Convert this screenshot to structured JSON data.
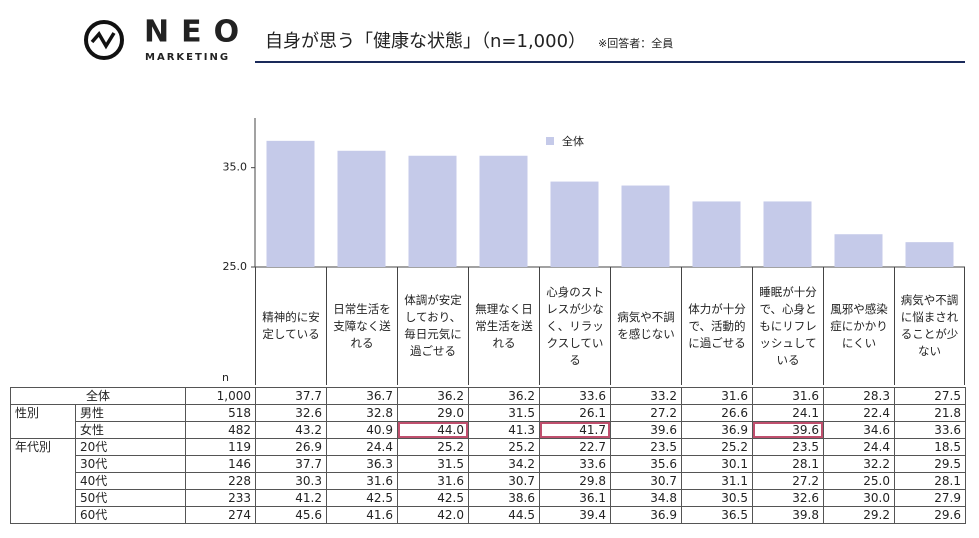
{
  "header": {
    "logo_main": "NEO",
    "logo_sub": "MARKETING",
    "title": "自身が思う「健康な状態」（n=1,000）",
    "note": "※回答者：全員"
  },
  "chart_data": {
    "type": "bar",
    "categories": [
      "精神的に安定している",
      "日常生活を支障なく送れる",
      "体調が安定しており、毎日元気に過ごせる",
      "無理なく日常生活を送れる",
      "心身のストレスが少なく、リラックスしている",
      "病気や不調を感じない",
      "体力が十分で、活動的に過ごせる",
      "睡眠が十分で、心身ともにリフレッシュしている",
      "風邪や感染症にかかりにくい",
      "病気や不調に悩まされることが少ない"
    ],
    "series": [
      {
        "name": "全体",
        "color": "#c5cae9",
        "values": [
          37.7,
          36.7,
          36.2,
          36.2,
          33.6,
          33.2,
          31.6,
          31.6,
          28.3,
          27.5
        ]
      }
    ],
    "ylim": [
      25,
      40
    ],
    "yticks": [
      {
        "value": 25,
        "label": "25.0"
      },
      {
        "value": 35,
        "label": "35.0"
      }
    ],
    "grid": false,
    "legend": "top-center"
  },
  "table": {
    "n_header": "n",
    "total_n": "1,000",
    "highlight_color": "#c0506e",
    "groups": [
      {
        "label": "性別",
        "rows": [
          {
            "label": "男性",
            "n": "518",
            "values": [
              "32.6",
              "32.8",
              "29.0",
              "31.5",
              "26.1",
              "27.2",
              "26.6",
              "24.1",
              "22.4",
              "21.8"
            ],
            "highlight": []
          },
          {
            "label": "女性",
            "n": "482",
            "values": [
              "43.2",
              "40.9",
              "44.0",
              "41.3",
              "41.7",
              "39.6",
              "36.9",
              "39.6",
              "34.6",
              "33.6"
            ],
            "highlight": [
              2,
              4,
              7
            ]
          }
        ]
      },
      {
        "label": "年代別",
        "rows": [
          {
            "label": "20代",
            "n": "119",
            "values": [
              "26.9",
              "24.4",
              "25.2",
              "25.2",
              "22.7",
              "23.5",
              "25.2",
              "23.5",
              "24.4",
              "18.5"
            ],
            "highlight": []
          },
          {
            "label": "30代",
            "n": "146",
            "values": [
              "37.7",
              "36.3",
              "31.5",
              "34.2",
              "33.6",
              "35.6",
              "30.1",
              "28.1",
              "32.2",
              "29.5"
            ],
            "highlight": []
          },
          {
            "label": "40代",
            "n": "228",
            "values": [
              "30.3",
              "31.6",
              "31.6",
              "30.7",
              "29.8",
              "30.7",
              "31.1",
              "27.2",
              "25.0",
              "28.1"
            ],
            "highlight": []
          },
          {
            "label": "50代",
            "n": "233",
            "values": [
              "41.2",
              "42.5",
              "42.5",
              "38.6",
              "36.1",
              "34.8",
              "30.5",
              "32.6",
              "30.0",
              "27.9"
            ],
            "highlight": []
          },
          {
            "label": "60代",
            "n": "274",
            "values": [
              "45.6",
              "41.6",
              "42.0",
              "44.5",
              "39.4",
              "36.9",
              "36.5",
              "39.8",
              "29.2",
              "29.6"
            ],
            "highlight": []
          }
        ]
      }
    ]
  }
}
